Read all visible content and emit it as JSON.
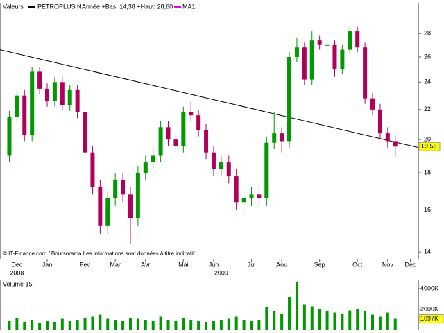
{
  "chart_data": [
    {
      "type": "candlestick",
      "header_label": "Valeurs",
      "range_note": "Année +Bas: 14,38 +Haut: 28,60",
      "ma_label": "MA1",
      "ma_color": "#ee00ee",
      "source": "© IT-Finance.com / Boursorama Les informations sont données à titre indicatif",
      "categories": [
        null,
        "Dec",
        null,
        null,
        null,
        "Jan",
        null,
        null,
        null,
        null,
        "Fev",
        null,
        null,
        null,
        "Mar",
        null,
        null,
        null,
        "Avr",
        null,
        null,
        null,
        null,
        "Mai",
        null,
        null,
        null,
        "Jun",
        null,
        null,
        null,
        null,
        "Jul",
        null,
        null,
        null,
        "Aou",
        null,
        null,
        null,
        null,
        "Sep",
        null,
        null,
        null,
        null,
        "Oct",
        null,
        null,
        null,
        "Nov",
        null,
        null,
        "Dec"
      ],
      "year_labels": [
        "2008",
        "2009"
      ],
      "series": [
        {
          "name": "PETROPLUS N",
          "up_color": "#009900",
          "down_color": "#b0005a",
          "open": [
            19.0,
            21.5,
            23.0,
            20.3,
            24.8,
            23.5,
            22.6,
            24.0,
            22.3,
            23.4,
            21.8,
            19.2,
            17.2,
            15.2,
            16.6,
            17.6,
            16.8,
            15.6,
            18.0,
            18.6,
            19.0,
            20.8,
            20.0,
            19.6,
            21.8,
            21.6,
            20.6,
            19.2,
            18.2,
            18.6,
            17.8,
            16.4,
            16.6,
            16.8,
            16.6,
            19.8,
            20.4,
            19.9,
            26.0,
            26.8,
            24.2,
            27.4,
            27.0,
            27.0,
            25.0,
            26.6,
            28.2,
            26.8,
            22.8,
            22.0,
            20.4,
            19.9,
            null,
            null
          ],
          "high": [
            21.9,
            23.4,
            23.4,
            25.2,
            25.2,
            23.9,
            24.4,
            24.4,
            23.8,
            23.8,
            22.2,
            19.6,
            17.6,
            17.0,
            18.0,
            18.0,
            17.2,
            18.4,
            19.0,
            19.4,
            21.2,
            21.2,
            20.4,
            22.2,
            22.6,
            22.0,
            21.0,
            19.6,
            19.0,
            19.0,
            18.2,
            17.0,
            17.2,
            17.2,
            20.2,
            21.8,
            20.8,
            26.4,
            27.6,
            27.2,
            28.2,
            27.8,
            27.4,
            27.4,
            27.0,
            28.6,
            28.6,
            27.2,
            23.2,
            22.4,
            20.8,
            20.3,
            null,
            null
          ],
          "low": [
            18.6,
            21.1,
            19.9,
            19.9,
            23.1,
            22.2,
            22.2,
            21.9,
            21.9,
            21.4,
            18.8,
            16.8,
            14.8,
            14.8,
            16.2,
            16.4,
            14.38,
            15.2,
            17.6,
            18.2,
            18.6,
            19.6,
            19.2,
            19.2,
            21.2,
            20.2,
            18.8,
            17.8,
            17.8,
            17.4,
            16.0,
            15.8,
            16.2,
            16.2,
            16.2,
            19.4,
            19.2,
            19.5,
            25.6,
            23.8,
            23.8,
            26.6,
            26.6,
            24.4,
            24.6,
            26.2,
            26.4,
            22.4,
            21.6,
            20.0,
            19.5,
            18.9,
            null,
            null
          ],
          "close": [
            21.5,
            23.0,
            20.3,
            24.8,
            23.5,
            22.6,
            24.0,
            22.3,
            23.4,
            21.8,
            19.2,
            17.2,
            15.2,
            16.6,
            17.6,
            16.8,
            15.6,
            18.0,
            18.6,
            19.0,
            20.8,
            20.0,
            19.6,
            21.8,
            21.6,
            20.6,
            19.2,
            18.2,
            18.6,
            17.8,
            16.4,
            16.6,
            16.8,
            16.6,
            19.8,
            20.4,
            19.9,
            26.0,
            26.8,
            24.2,
            27.4,
            27.0,
            27.0,
            25.0,
            26.6,
            28.2,
            26.8,
            22.8,
            22.0,
            20.4,
            19.9,
            19.56,
            null,
            null
          ]
        }
      ],
      "ylim": [
        13.7,
        30.8
      ],
      "log_scale": true,
      "yticks": [
        14,
        16,
        18,
        20,
        22,
        24,
        26,
        28
      ],
      "last_value": 19.56,
      "last_value_label": "19,56",
      "trendline": [
        26.6,
        19.5
      ],
      "trendline_color": "#000000"
    },
    {
      "type": "bar",
      "title": "Volume 15",
      "color": "#009900",
      "values": [
        900,
        1200,
        800,
        1000,
        700,
        900,
        800,
        1100,
        900,
        1000,
        1200,
        1300,
        1500,
        1100,
        1000,
        900,
        1200,
        1100,
        1000,
        900,
        1300,
        1000,
        900,
        1200,
        1000,
        900,
        800,
        900,
        1000,
        1100,
        1300,
        1000,
        900,
        1000,
        2200,
        1800,
        1600,
        3200,
        4600,
        2500,
        2300,
        2000,
        1800,
        1700,
        1600,
        1900,
        2000,
        1800,
        1500,
        1300,
        1700,
        1097,
        null,
        null
      ],
      "ylim": [
        0,
        4800
      ],
      "yticks": [
        {
          "value": 2000,
          "label": "2000K"
        },
        {
          "value": 4000,
          "label": "4000K"
        }
      ],
      "last_value": 1097,
      "last_value_label": "1097K"
    }
  ]
}
